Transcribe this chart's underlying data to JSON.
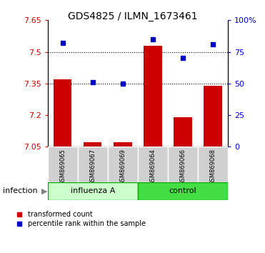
{
  "title": "GDS4825 / ILMN_1673461",
  "samples": [
    "GSM869065",
    "GSM869067",
    "GSM869069",
    "GSM869064",
    "GSM869066",
    "GSM869068"
  ],
  "groups": [
    "influenza A",
    "influenza A",
    "influenza A",
    "control",
    "control",
    "control"
  ],
  "group_labels": [
    "influenza A",
    "control"
  ],
  "group_colors": [
    "#aaffaa",
    "#00cc00"
  ],
  "bar_bottom": 7.05,
  "red_values": [
    7.37,
    7.07,
    7.07,
    7.53,
    7.19,
    7.34
  ],
  "blue_values_pct": [
    82,
    51,
    50,
    85,
    70,
    81
  ],
  "ylim_left": [
    7.05,
    7.65
  ],
  "ylim_right": [
    0,
    100
  ],
  "yticks_left": [
    7.05,
    7.2,
    7.35,
    7.5,
    7.65
  ],
  "yticks_right": [
    0,
    25,
    50,
    75,
    100
  ],
  "ytick_labels_left": [
    "7.05",
    "7.2",
    "7.35",
    "7.5",
    "7.65"
  ],
  "ytick_labels_right": [
    "0",
    "25",
    "50",
    "75",
    "100%"
  ],
  "hline_values": [
    7.35,
    7.5
  ],
  "bar_color": "#cc0000",
  "dot_color": "#0000cc",
  "bar_width": 0.6,
  "background_color": "#ffffff",
  "plot_bg_color": "#ffffff",
  "label_area_color": "#d0d0d0",
  "infection_label": "infection",
  "legend_red": "transformed count",
  "legend_blue": "percentile rank within the sample",
  "left_tick_color": "#cc0000",
  "right_tick_color": "#0000cc"
}
